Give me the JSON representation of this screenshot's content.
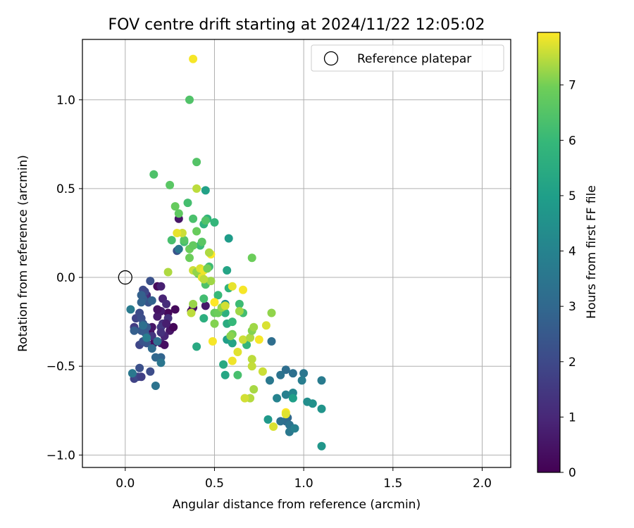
{
  "chart_data": {
    "type": "scatter",
    "title": "FOV centre drift starting at 2024/11/22 12:05:02",
    "xlabel": "Angular distance from reference (arcmin)",
    "ylabel": "Rotation from reference (arcmin)",
    "xlim": [
      -0.24,
      2.16
    ],
    "ylim": [
      -1.07,
      1.34
    ],
    "xticks": [
      0.0,
      0.5,
      1.0,
      1.5,
      2.0
    ],
    "xtick_labels": [
      "0.0",
      "0.5",
      "1.0",
      "1.5",
      "2.0"
    ],
    "yticks": [
      -1.0,
      -0.5,
      0.0,
      0.5,
      1.0
    ],
    "ytick_labels": [
      "−1.0",
      "−0.5",
      "0.0",
      "0.5",
      "1.0"
    ],
    "grid": true,
    "legend": {
      "position": "top-right",
      "entries": [
        "Reference platepar"
      ]
    },
    "reference_point": {
      "x": 0.0,
      "y": 0.0,
      "marker": "hollow-circle"
    },
    "colorbar": {
      "label": "Hours from first FF file",
      "colormap": "viridis",
      "range": [
        0,
        7.95
      ],
      "ticks": [
        0,
        1,
        2,
        3,
        4,
        5,
        6,
        7
      ],
      "tick_labels": [
        "0",
        "1",
        "2",
        "3",
        "4",
        "5",
        "6",
        "7"
      ]
    },
    "series": [
      {
        "points": [
          [
            0.37,
            -0.19,
            0.05
          ],
          [
            0.38,
            -0.17,
            0.3
          ],
          [
            0.45,
            -0.16,
            0.6
          ],
          [
            0.24,
            -0.2,
            0.2
          ],
          [
            0.25,
            -0.3,
            0.5
          ],
          [
            0.27,
            -0.28,
            0.1
          ],
          [
            0.22,
            -0.26,
            0.4
          ],
          [
            0.2,
            -0.19,
            0.7
          ],
          [
            0.18,
            -0.05,
            0.2
          ],
          [
            0.2,
            -0.05,
            0.8
          ],
          [
            0.21,
            -0.12,
            0.9
          ],
          [
            0.28,
            -0.18,
            0.2
          ],
          [
            0.3,
            0.33,
            0.5
          ],
          [
            0.14,
            -0.31,
            0.15
          ],
          [
            0.16,
            -0.37,
            0.25
          ],
          [
            0.2,
            -0.37,
            0.85
          ],
          [
            0.21,
            -0.26,
            1.2
          ],
          [
            0.12,
            -0.1,
            1.1
          ],
          [
            0.22,
            -0.38,
            0.35
          ],
          [
            0.24,
            -0.23,
            1.3
          ],
          [
            0.15,
            -0.33,
            1.4
          ],
          [
            0.2,
            -0.28,
            1.5
          ],
          [
            0.18,
            -0.22,
            0.65
          ],
          [
            0.23,
            -0.15,
            1.1
          ],
          [
            0.22,
            -0.33,
            0.95
          ],
          [
            0.18,
            -0.18,
            0.45
          ],
          [
            0.15,
            -0.28,
            0.55
          ],
          [
            0.23,
            -0.26,
            0.75
          ],
          [
            0.13,
            -0.14,
            1.0
          ],
          [
            0.2,
            -0.31,
            1.25
          ],
          [
            0.05,
            -0.28,
            1.6
          ],
          [
            0.05,
            -0.57,
            1.8
          ],
          [
            0.07,
            -0.56,
            2.0
          ],
          [
            0.14,
            -0.53,
            2.1
          ],
          [
            0.08,
            -0.51,
            2.2
          ],
          [
            0.09,
            -0.56,
            1.7
          ],
          [
            0.08,
            -0.38,
            1.9
          ],
          [
            0.1,
            -0.36,
            2.3
          ],
          [
            0.12,
            -0.37,
            2.4
          ],
          [
            0.09,
            -0.3,
            2.5
          ],
          [
            0.11,
            -0.31,
            2.6
          ],
          [
            0.05,
            -0.3,
            2.7
          ],
          [
            0.06,
            -0.23,
            1.85
          ],
          [
            0.08,
            -0.2,
            2.05
          ],
          [
            0.09,
            -0.23,
            2.15
          ],
          [
            0.1,
            -0.26,
            2.45
          ],
          [
            0.12,
            -0.28,
            2.55
          ],
          [
            0.13,
            -0.14,
            2.35
          ],
          [
            0.1,
            -0.12,
            2.65
          ],
          [
            0.15,
            -0.13,
            2.8
          ],
          [
            0.14,
            -0.02,
            2.25
          ],
          [
            0.1,
            -0.07,
            2.05
          ],
          [
            0.09,
            -0.14,
            2.85
          ],
          [
            0.11,
            -0.08,
            1.95
          ],
          [
            0.09,
            -0.1,
            2.75
          ],
          [
            0.2,
            -0.45,
            2.9
          ],
          [
            0.17,
            -0.45,
            3.0
          ],
          [
            0.15,
            -0.4,
            3.1
          ],
          [
            0.18,
            -0.36,
            3.2
          ],
          [
            0.17,
            -0.61,
            3.4
          ],
          [
            0.2,
            -0.48,
            3.5
          ],
          [
            0.04,
            -0.54,
            3.6
          ],
          [
            0.03,
            -0.18,
            3.7
          ],
          [
            0.1,
            -0.27,
            3.3
          ],
          [
            0.12,
            -0.34,
            3.8
          ],
          [
            0.29,
            0.15,
            2.3
          ],
          [
            0.3,
            0.16,
            3.5
          ],
          [
            0.9,
            -0.52,
            3.2
          ],
          [
            0.94,
            -0.54,
            3.3
          ],
          [
            0.87,
            -0.55,
            3.4
          ],
          [
            1.0,
            -0.54,
            3.5
          ],
          [
            0.81,
            -0.58,
            3.6
          ],
          [
            1.1,
            -0.58,
            3.7
          ],
          [
            0.99,
            -0.58,
            3.8
          ],
          [
            0.9,
            -0.66,
            3.9
          ],
          [
            0.85,
            -0.68,
            4.0
          ],
          [
            0.94,
            -0.65,
            4.1
          ],
          [
            0.91,
            -0.79,
            3.0
          ],
          [
            0.9,
            -0.81,
            3.1
          ],
          [
            0.87,
            -0.81,
            3.3
          ],
          [
            0.92,
            -0.83,
            3.4
          ],
          [
            0.92,
            -0.87,
            3.6
          ],
          [
            0.95,
            -0.85,
            3.9
          ],
          [
            0.82,
            -0.36,
            3.2
          ],
          [
            1.02,
            -0.7,
            4.4
          ],
          [
            1.05,
            -0.71,
            4.5
          ],
          [
            1.1,
            -0.74,
            4.6
          ],
          [
            1.1,
            -0.95,
            4.7
          ],
          [
            0.8,
            -0.8,
            4.8
          ],
          [
            0.94,
            -0.68,
            5.0
          ],
          [
            0.56,
            -0.15,
            4.5
          ],
          [
            0.57,
            -0.35,
            5.0
          ],
          [
            0.6,
            -0.37,
            5.2
          ],
          [
            0.56,
            -0.55,
            5.3
          ],
          [
            0.55,
            -0.49,
            5.4
          ],
          [
            0.58,
            0.22,
            4.9
          ],
          [
            0.45,
            0.49,
            5.1
          ],
          [
            0.57,
            -0.26,
            5.5
          ],
          [
            0.56,
            -0.2,
            5.6
          ],
          [
            0.57,
            0.04,
            5.2
          ],
          [
            0.55,
            -0.18,
            5.7
          ],
          [
            0.58,
            -0.06,
            5.8
          ],
          [
            0.46,
            0.33,
            5.8
          ],
          [
            0.5,
            0.31,
            5.9
          ],
          [
            0.44,
            0.3,
            5.75
          ],
          [
            0.68,
            -0.38,
            5.85
          ],
          [
            0.6,
            -0.25,
            5.95
          ],
          [
            0.64,
            -0.15,
            6.1
          ],
          [
            0.66,
            -0.2,
            6.2
          ],
          [
            0.63,
            -0.55,
            6.3
          ],
          [
            0.52,
            -0.1,
            6.0
          ],
          [
            0.42,
            0.18,
            6.05
          ],
          [
            0.33,
            0.2,
            6.15
          ],
          [
            0.35,
            0.42,
            6.25
          ],
          [
            0.38,
            0.33,
            6.35
          ],
          [
            0.45,
            0.32,
            6.45
          ],
          [
            0.36,
            1.0,
            6.45
          ],
          [
            0.16,
            0.58,
            6.4
          ],
          [
            0.4,
            0.65,
            6.5
          ],
          [
            0.25,
            0.52,
            6.6
          ],
          [
            0.3,
            0.36,
            6.7
          ],
          [
            0.28,
            0.4,
            6.8
          ],
          [
            0.26,
            0.21,
            6.3
          ],
          [
            0.36,
            0.16,
            6.9
          ],
          [
            0.33,
            0.21,
            6.55
          ],
          [
            0.38,
            0.18,
            6.75
          ],
          [
            0.4,
            0.26,
            6.85
          ],
          [
            0.43,
            0.2,
            6.6
          ],
          [
            0.36,
            0.11,
            6.9
          ],
          [
            0.44,
            -0.12,
            6.2
          ],
          [
            0.44,
            -0.23,
            5.6
          ],
          [
            0.4,
            -0.39,
            5.4
          ],
          [
            0.45,
            -0.04,
            6.4
          ],
          [
            0.47,
            0.06,
            6.1
          ],
          [
            0.41,
            0.02,
            6.7
          ],
          [
            0.5,
            -0.2,
            6.8
          ],
          [
            0.52,
            -0.2,
            6.9
          ],
          [
            0.5,
            -0.26,
            7.1
          ],
          [
            0.54,
            -0.17,
            7.2
          ],
          [
            0.6,
            -0.32,
            7.0
          ],
          [
            0.64,
            -0.19,
            7.3
          ],
          [
            0.66,
            -0.35,
            7.6
          ],
          [
            0.7,
            -0.34,
            7.4
          ],
          [
            0.71,
            -0.3,
            7.1
          ],
          [
            0.72,
            -0.28,
            7.3
          ],
          [
            0.75,
            -0.35,
            7.9
          ],
          [
            0.79,
            -0.27,
            7.7
          ],
          [
            0.82,
            -0.2,
            7.2
          ],
          [
            0.77,
            -0.53,
            7.6
          ],
          [
            0.71,
            -0.46,
            7.5
          ],
          [
            0.71,
            -0.5,
            7.55
          ],
          [
            0.7,
            -0.68,
            7.45
          ],
          [
            0.72,
            -0.63,
            7.35
          ],
          [
            0.67,
            -0.68,
            7.65
          ],
          [
            0.63,
            -0.42,
            7.75
          ],
          [
            0.6,
            -0.47,
            7.85
          ],
          [
            0.6,
            -0.05,
            7.8
          ],
          [
            0.66,
            -0.07,
            7.9
          ],
          [
            0.5,
            -0.14,
            7.95
          ],
          [
            0.49,
            -0.36,
            7.9
          ],
          [
            0.37,
            -0.2,
            7.5
          ],
          [
            0.38,
            0.04,
            7.6
          ],
          [
            0.4,
            0.03,
            7.2
          ],
          [
            0.42,
            0.05,
            7.7
          ],
          [
            0.43,
            0.0,
            7.8
          ],
          [
            0.44,
            0.04,
            7.85
          ],
          [
            0.46,
            0.05,
            7.0
          ],
          [
            0.48,
            0.13,
            7.95
          ],
          [
            0.47,
            0.14,
            7.4
          ],
          [
            0.48,
            -0.02,
            7.3
          ],
          [
            0.44,
            -0.01,
            7.5
          ],
          [
            0.38,
            -0.15,
            7.25
          ],
          [
            0.32,
            0.25,
            7.6
          ],
          [
            0.24,
            0.03,
            7.4
          ],
          [
            0.29,
            0.25,
            7.8
          ],
          [
            0.4,
            0.5,
            7.5
          ],
          [
            0.38,
            1.23,
            7.9
          ],
          [
            0.71,
            0.11,
            6.9
          ],
          [
            0.83,
            -0.84,
            7.7
          ],
          [
            0.9,
            -0.76,
            7.95
          ],
          [
            0.9,
            -0.77,
            7.75
          ],
          [
            0.56,
            -0.16,
            7.65
          ],
          [
            0.59,
            -0.33,
            7.15
          ]
        ]
      }
    ]
  }
}
